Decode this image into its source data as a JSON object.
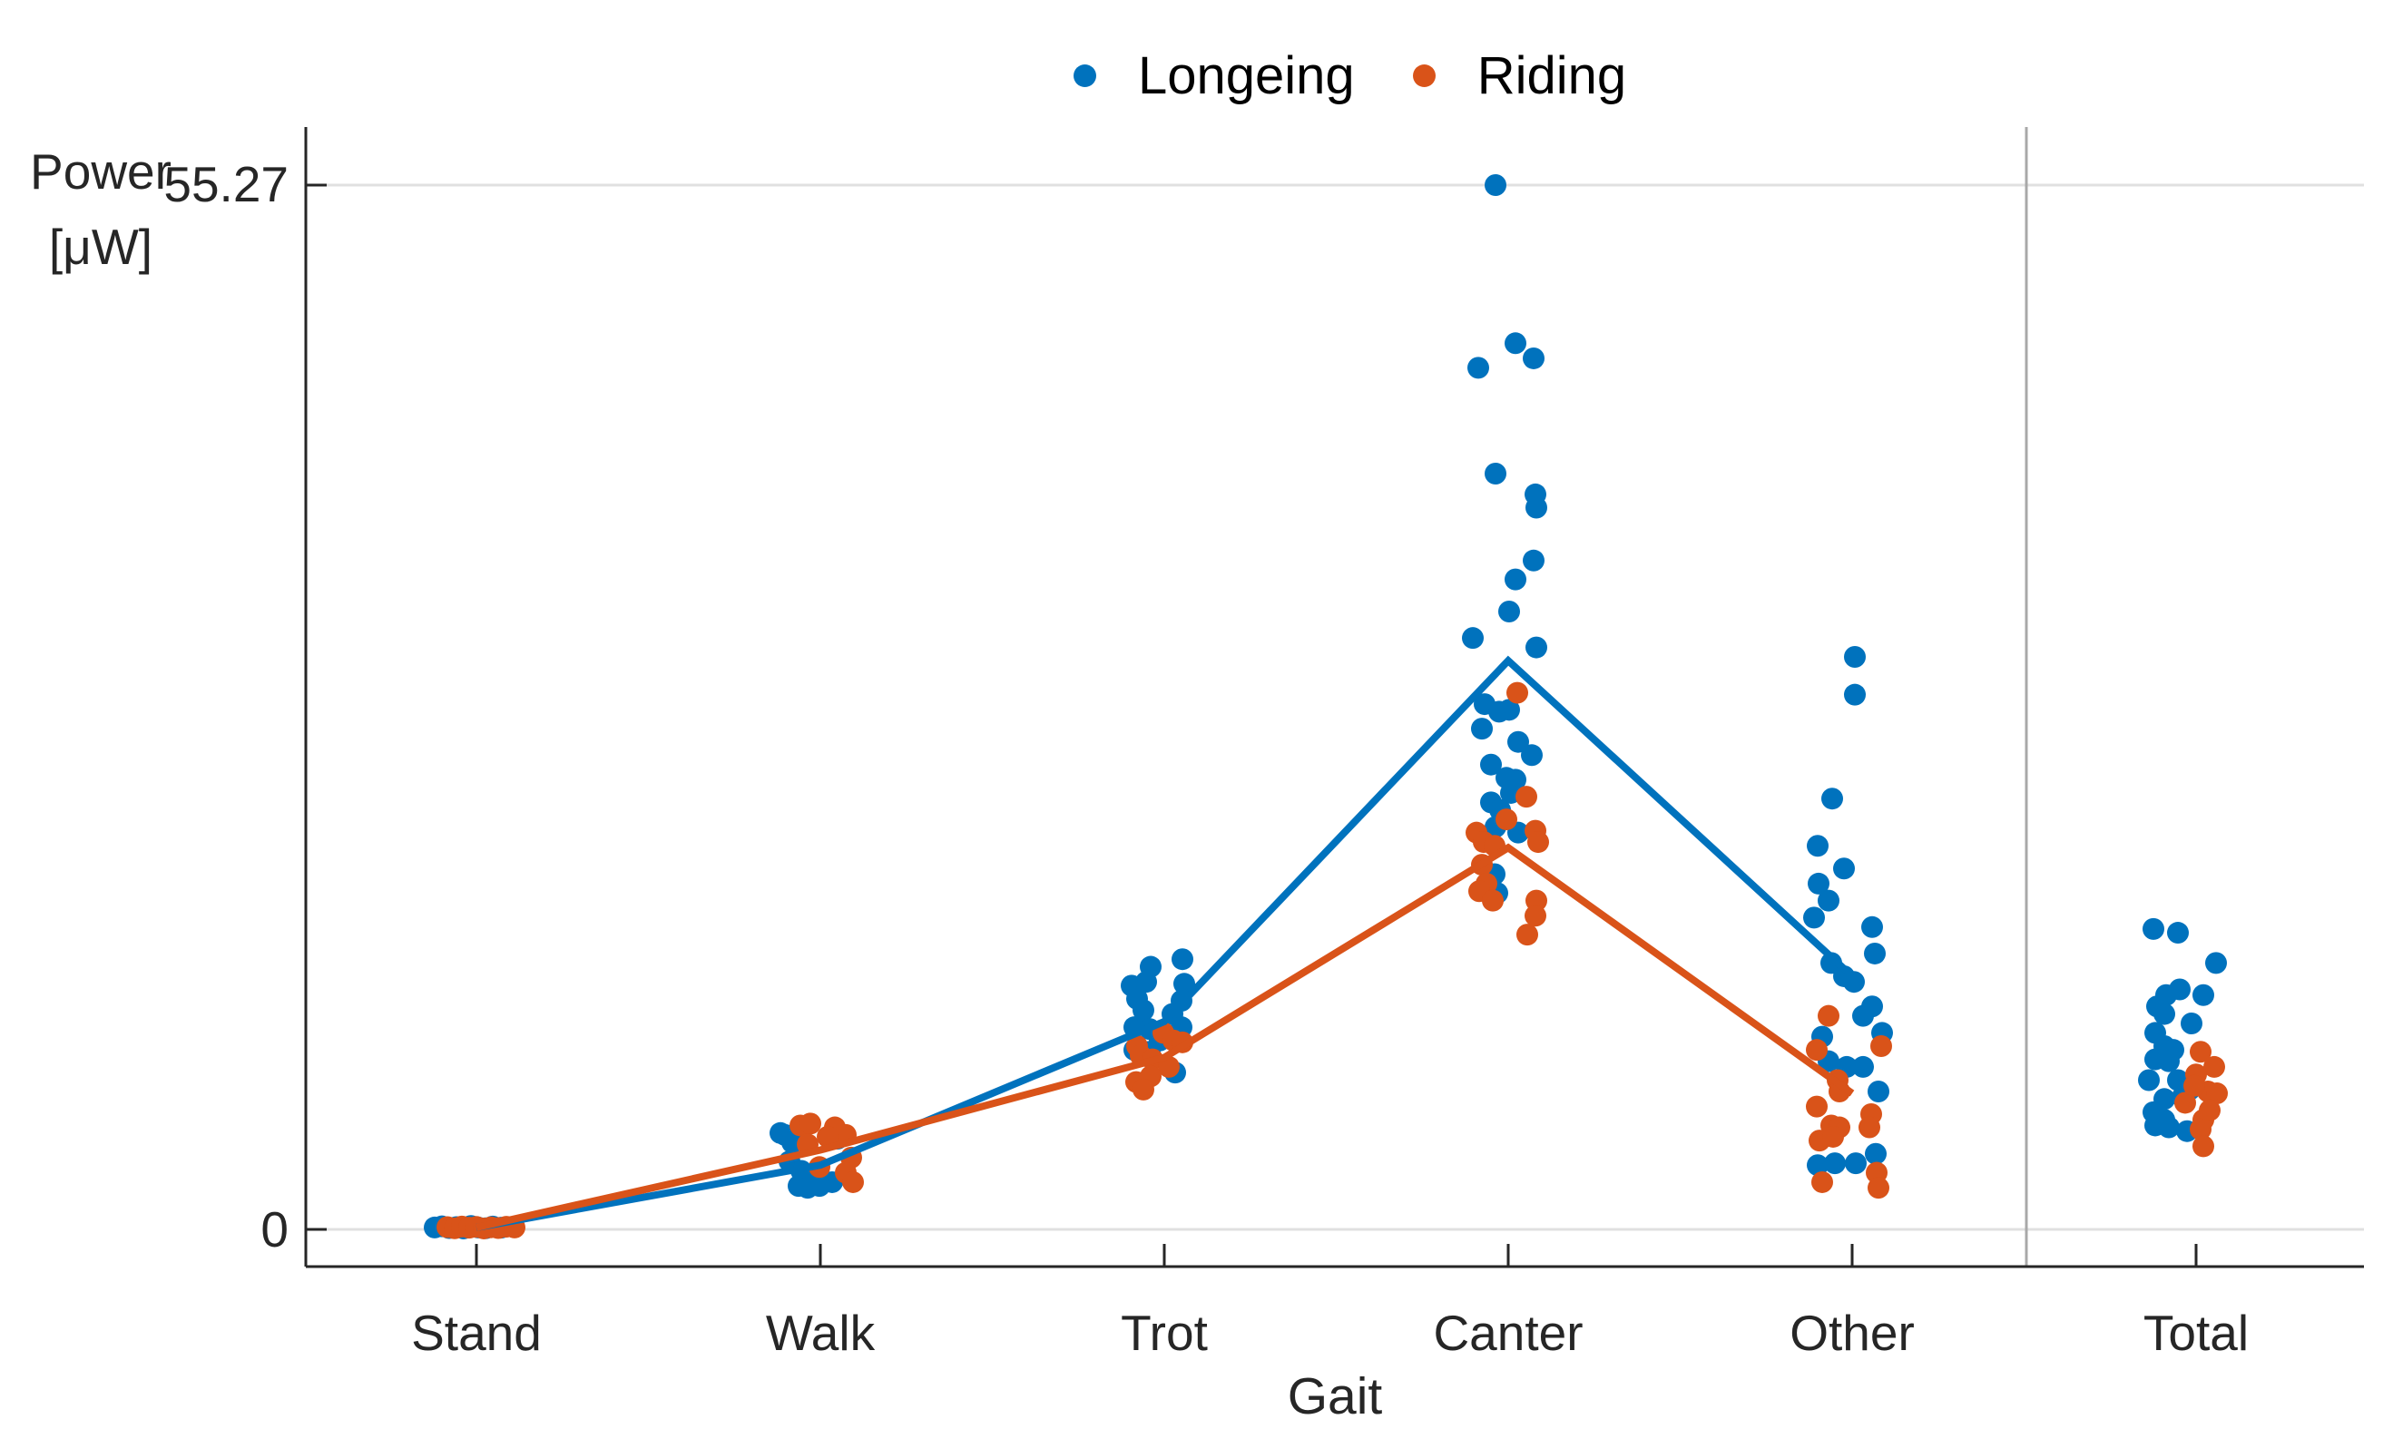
{
  "figure": {
    "background": "#FFFFFF"
  },
  "axes": {
    "y_label_line1": "Power",
    "y_label_line2": "[μW]",
    "x_label": "Gait",
    "y_ticks": [
      "55.27",
      "0"
    ]
  },
  "chart_data": {
    "type": "scatter",
    "title": "",
    "xlabel": "Gait",
    "ylabel": "Power [μW]",
    "categories": [
      "Stand",
      "Walk",
      "Trot",
      "Canter",
      "Other",
      "Total"
    ],
    "y_tick_values": [
      55.27,
      0
    ],
    "max_value": 55.27,
    "ylim": [
      -1.9,
      58.3
    ],
    "grid": "horizontal gridlines at y ticks only",
    "legend_position": "top-center",
    "separator_before_category": "Total",
    "colors": {
      "longeing": "#0072BD",
      "riding": "#D95319",
      "axis": "#262626",
      "grid": "#E0E0E0",
      "separator": "#A8A8A8"
    },
    "series": [
      {
        "name": "Longeing",
        "color": "#0072BD",
        "means_by_category": [
          0.1,
          3.4,
          11.0,
          30.1,
          13.4,
          null
        ],
        "points_by_category": [
          [
            [
              -46,
              0.1
            ],
            [
              -38,
              0.16
            ],
            [
              -30,
              0.07
            ],
            [
              -22,
              0.12
            ],
            [
              -14,
              0.05
            ],
            [
              -6,
              0.18
            ],
            [
              2,
              0.1
            ],
            [
              10,
              0.06
            ],
            [
              18,
              0.15
            ],
            [
              27,
              0.09
            ]
          ],
          [
            [
              -44,
              5.1
            ],
            [
              -39,
              5.0
            ],
            [
              -31,
              4.6
            ],
            [
              19,
              4.8
            ],
            [
              -34,
              3.6
            ],
            [
              -21,
              3.1
            ],
            [
              -11,
              2.8
            ],
            [
              -24,
              2.3
            ],
            [
              -1,
              2.3
            ],
            [
              13,
              2.5
            ],
            [
              -14,
              2.2
            ]
          ],
          [
            [
              -36,
              12.9
            ],
            [
              -15,
              13.9
            ],
            [
              20,
              14.3
            ],
            [
              -20,
              13.1
            ],
            [
              22,
              13.0
            ],
            [
              -30,
              12.2
            ],
            [
              19,
              12.1
            ],
            [
              -23,
              11.6
            ],
            [
              9,
              11.4
            ],
            [
              -33,
              10.7
            ],
            [
              -16,
              10.6
            ],
            [
              19,
              10.7
            ],
            [
              -5,
              10.0
            ],
            [
              -33,
              9.5
            ],
            [
              -16,
              9.4
            ],
            [
              12,
              8.3
            ]
          ],
          [
            [
              -14,
              55.27
            ],
            [
              8,
              46.9
            ],
            [
              28,
              46.1
            ],
            [
              -33,
              45.6
            ],
            [
              -14,
              40.0
            ],
            [
              30,
              38.9
            ],
            [
              31,
              38.2
            ],
            [
              28,
              35.4
            ],
            [
              8,
              34.4
            ],
            [
              1,
              32.7
            ],
            [
              -39,
              31.3
            ],
            [
              31,
              30.8
            ],
            [
              -26,
              27.8
            ],
            [
              -10,
              27.4
            ],
            [
              1,
              27.5
            ],
            [
              -29,
              26.5
            ],
            [
              11,
              25.8
            ],
            [
              26,
              25.1
            ],
            [
              -19,
              24.6
            ],
            [
              -2,
              23.9
            ],
            [
              8,
              23.8
            ],
            [
              3,
              23.1
            ],
            [
              -19,
              22.6
            ],
            [
              -9,
              22.2
            ],
            [
              -14,
              21.3
            ],
            [
              11,
              21.0
            ],
            [
              -15,
              18.8
            ],
            [
              -20,
              18.0
            ],
            [
              -12,
              17.8
            ]
          ],
          [
            [
              3,
              30.3
            ],
            [
              3,
              28.3
            ],
            [
              -22,
              22.8
            ],
            [
              -38,
              20.3
            ],
            [
              -9,
              19.1
            ],
            [
              -37,
              18.3
            ],
            [
              -26,
              17.4
            ],
            [
              -42,
              16.5
            ],
            [
              22,
              16.0
            ],
            [
              25,
              14.6
            ],
            [
              -23,
              14.1
            ],
            [
              -9,
              13.4
            ],
            [
              2,
              13.1
            ],
            [
              22,
              11.8
            ],
            [
              12,
              11.3
            ],
            [
              33,
              10.4
            ],
            [
              -33,
              10.2
            ],
            [
              -26,
              8.9
            ],
            [
              -6,
              8.6
            ],
            [
              12,
              8.6
            ],
            [
              29,
              7.3
            ],
            [
              -38,
              3.4
            ],
            [
              -19,
              3.5
            ],
            [
              4,
              3.5
            ],
            [
              26,
              4.0
            ]
          ],
          [
            [
              -47,
              15.9
            ],
            [
              -20,
              15.7
            ],
            [
              22,
              14.1
            ],
            [
              -18,
              12.7
            ],
            [
              -33,
              12.4
            ],
            [
              8,
              12.4
            ],
            [
              -43,
              11.8
            ],
            [
              -35,
              11.4
            ],
            [
              -5,
              10.9
            ],
            [
              -45,
              10.4
            ],
            [
              -35,
              9.7
            ],
            [
              -25,
              9.5
            ],
            [
              -45,
              9.0
            ],
            [
              -30,
              8.9
            ],
            [
              -52,
              7.9
            ],
            [
              -20,
              7.9
            ],
            [
              -7,
              7.4
            ],
            [
              -35,
              6.9
            ],
            [
              -15,
              7.0
            ],
            [
              -47,
              6.2
            ],
            [
              -35,
              5.8
            ],
            [
              -45,
              5.5
            ],
            [
              -30,
              5.4
            ],
            [
              -10,
              5.2
            ]
          ]
        ]
      },
      {
        "name": "Riding",
        "color": "#D95319",
        "means_by_category": [
          0.1,
          4.2,
          9.1,
          20.2,
          7.2,
          null
        ],
        "points_by_category": [
          [
            [
              -32,
              0.12
            ],
            [
              -24,
              0.06
            ],
            [
              -16,
              0.15
            ],
            [
              -8,
              0.09
            ],
            [
              0,
              0.13
            ],
            [
              8,
              0.05
            ],
            [
              16,
              0.11
            ],
            [
              24,
              0.07
            ],
            [
              33,
              0.14
            ],
            [
              42,
              0.1
            ]
          ],
          [
            [
              -22,
              5.5
            ],
            [
              -11,
              5.6
            ],
            [
              16,
              5.4
            ],
            [
              28,
              5.0
            ],
            [
              -14,
              4.5
            ],
            [
              8,
              4.9
            ],
            [
              34,
              3.8
            ],
            [
              -1,
              3.3
            ],
            [
              28,
              3.0
            ],
            [
              36,
              2.5
            ]
          ],
          [
            [
              -30,
              9.7
            ],
            [
              -1,
              10.4
            ],
            [
              -26,
              9.2
            ],
            [
              -13,
              9.0
            ],
            [
              10,
              10.0
            ],
            [
              20,
              9.9
            ],
            [
              5,
              8.6
            ],
            [
              -15,
              8.1
            ],
            [
              -31,
              7.8
            ],
            [
              -23,
              7.4
            ]
          ],
          [
            [
              10,
              28.4
            ],
            [
              20,
              22.9
            ],
            [
              -2,
              21.7
            ],
            [
              -35,
              21.0
            ],
            [
              -27,
              20.5
            ],
            [
              -15,
              20.3
            ],
            [
              30,
              21.1
            ],
            [
              33,
              20.5
            ],
            [
              -29,
              19.3
            ],
            [
              -24,
              18.3
            ],
            [
              -32,
              17.9
            ],
            [
              -17,
              17.4
            ],
            [
              31,
              17.4
            ],
            [
              30,
              16.6
            ],
            [
              21,
              15.6
            ]
          ],
          [
            [
              -26,
              11.3
            ],
            [
              -39,
              9.5
            ],
            [
              32,
              9.7
            ],
            [
              -16,
              7.9
            ],
            [
              -14,
              7.3
            ],
            [
              -39,
              6.5
            ],
            [
              -23,
              5.5
            ],
            [
              -14,
              5.4
            ],
            [
              21,
              6.1
            ],
            [
              19,
              5.4
            ],
            [
              -36,
              4.7
            ],
            [
              -21,
              4.9
            ],
            [
              -33,
              2.5
            ],
            [
              27,
              3.0
            ],
            [
              29,
              2.2
            ]
          ],
          [
            [
              5,
              9.4
            ],
            [
              20,
              8.6
            ],
            [
              0,
              8.2
            ],
            [
              13,
              7.3
            ],
            [
              23,
              7.2
            ],
            [
              -12,
              6.7
            ],
            [
              8,
              5.8
            ],
            [
              5,
              5.3
            ],
            [
              8,
              4.4
            ],
            [
              15,
              6.3
            ],
            [
              -2,
              7.6
            ]
          ]
        ]
      }
    ]
  }
}
